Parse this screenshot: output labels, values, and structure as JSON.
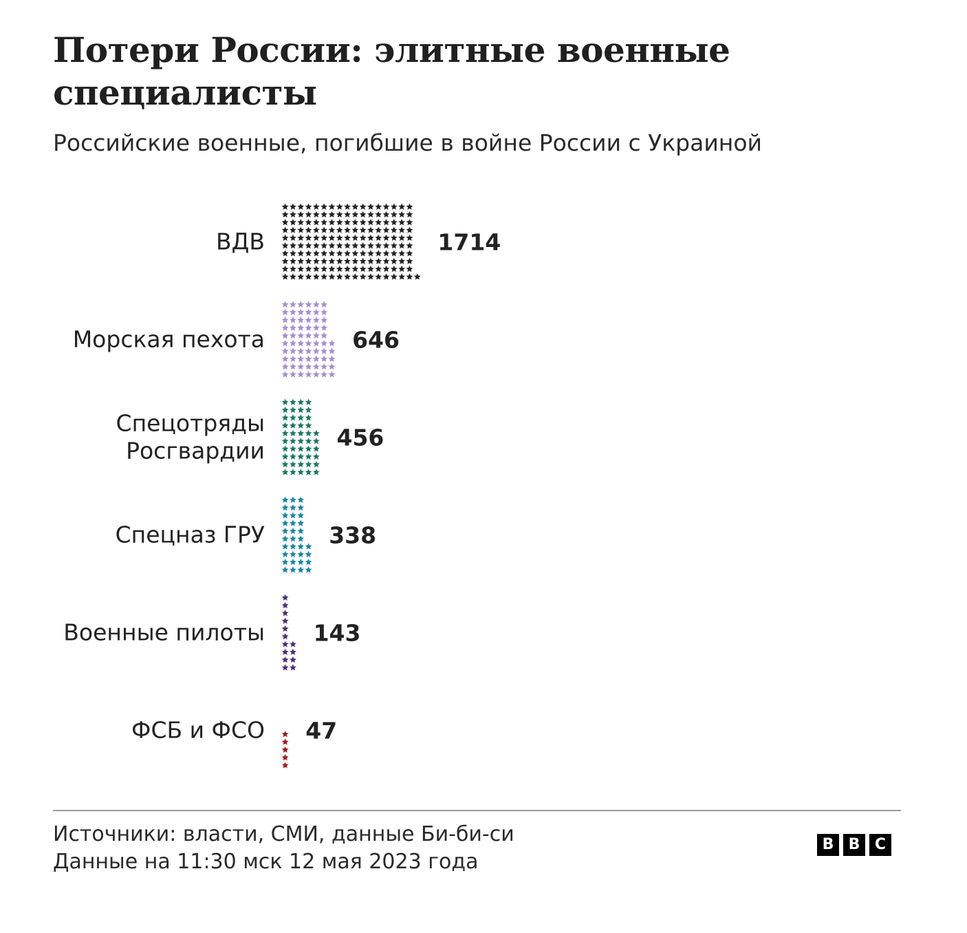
{
  "chart_data": {
    "type": "bar",
    "orientation": "horizontal",
    "title": "Потери России: элитные военные специалисты",
    "subtitle": "Российские военные, погибшие в войне России с Украиной",
    "categories": [
      [
        "ВДВ"
      ],
      [
        "Морская пехота"
      ],
      [
        "Спецотряды",
        "Росгвардии"
      ],
      [
        "Спецназ ГРУ"
      ],
      [
        "Военные пилоты"
      ],
      [
        "ФСБ и ФСО"
      ]
    ],
    "values": [
      1714,
      646,
      456,
      338,
      143,
      47
    ],
    "value_labels": [
      "1714",
      "646",
      "456",
      "338",
      "143",
      "47"
    ],
    "colors": [
      "#222222",
      "#a48fd4",
      "#1a7a5e",
      "#1a86a0",
      "#4b2e7a",
      "#a01919"
    ]
  },
  "footer": {
    "source": "Источники: власти, СМИ, данные Би-би-си",
    "date": "Данные на 11:30 мск 12 мая 2023 года"
  },
  "logo": {
    "letters": [
      "B",
      "B",
      "C"
    ]
  }
}
